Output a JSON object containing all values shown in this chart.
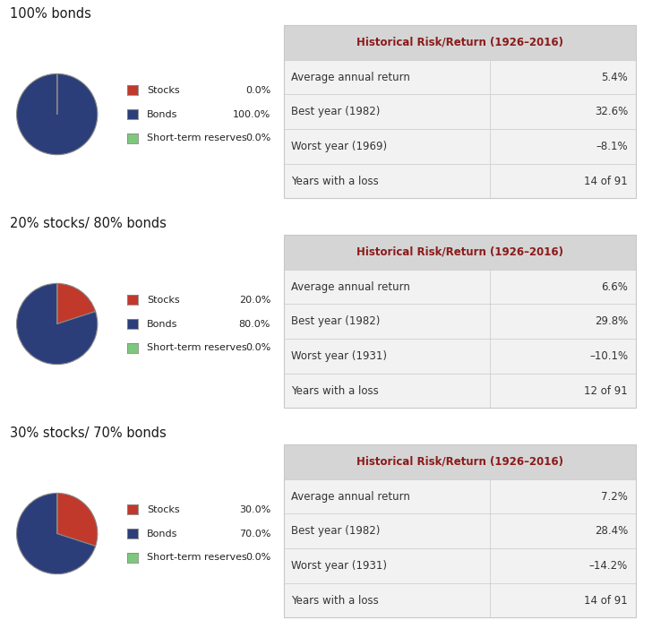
{
  "sections": [
    {
      "title": "100% bonds",
      "pie": [
        0.001,
        100.0,
        0.001
      ],
      "legend_labels": [
        "Stocks",
        "Bonds",
        "Short-term reserves"
      ],
      "legend_values": [
        "0.0%",
        "100.0%",
        "0.0%"
      ],
      "table_title": "Historical Risk/Return (1926–2016)",
      "rows": [
        [
          "Average annual return",
          "5.4%"
        ],
        [
          "Best year (1982)",
          "32.6%"
        ],
        [
          "Worst year (1969)",
          "–8.1%"
        ],
        [
          "Years with a loss",
          "14 of 91"
        ]
      ]
    },
    {
      "title": "20% stocks/ 80% bonds",
      "pie": [
        20.0,
        80.0,
        0.001
      ],
      "legend_labels": [
        "Stocks",
        "Bonds",
        "Short-term reserves"
      ],
      "legend_values": [
        "20.0%",
        "80.0%",
        "0.0%"
      ],
      "table_title": "Historical Risk/Return (1926–2016)",
      "rows": [
        [
          "Average annual return",
          "6.6%"
        ],
        [
          "Best year (1982)",
          "29.8%"
        ],
        [
          "Worst year (1931)",
          "–10.1%"
        ],
        [
          "Years with a loss",
          "12 of 91"
        ]
      ]
    },
    {
      "title": "30% stocks/ 70% bonds",
      "pie": [
        30.0,
        70.0,
        0.001
      ],
      "legend_labels": [
        "Stocks",
        "Bonds",
        "Short-term reserves"
      ],
      "legend_values": [
        "30.0%",
        "70.0%",
        "0.0%"
      ],
      "table_title": "Historical Risk/Return (1926–2016)",
      "rows": [
        [
          "Average annual return",
          "7.2%"
        ],
        [
          "Best year (1982)",
          "28.4%"
        ],
        [
          "Worst year (1931)",
          "–14.2%"
        ],
        [
          "Years with a loss",
          "14 of 91"
        ]
      ]
    }
  ],
  "pie_colors": [
    "#c0392b",
    "#2c3e7a",
    "#7dc87d"
  ],
  "bg_color": "#ffffff",
  "table_header_bg": "#d5d5d5",
  "table_row_bg": "#f2f2f2",
  "table_border_color": "#c8c8c8",
  "table_header_text_color": "#8b1a1a",
  "table_text_color": "#333333",
  "section_title_fontsize": 10.5,
  "legend_fontsize": 8,
  "table_fontsize": 8.5
}
